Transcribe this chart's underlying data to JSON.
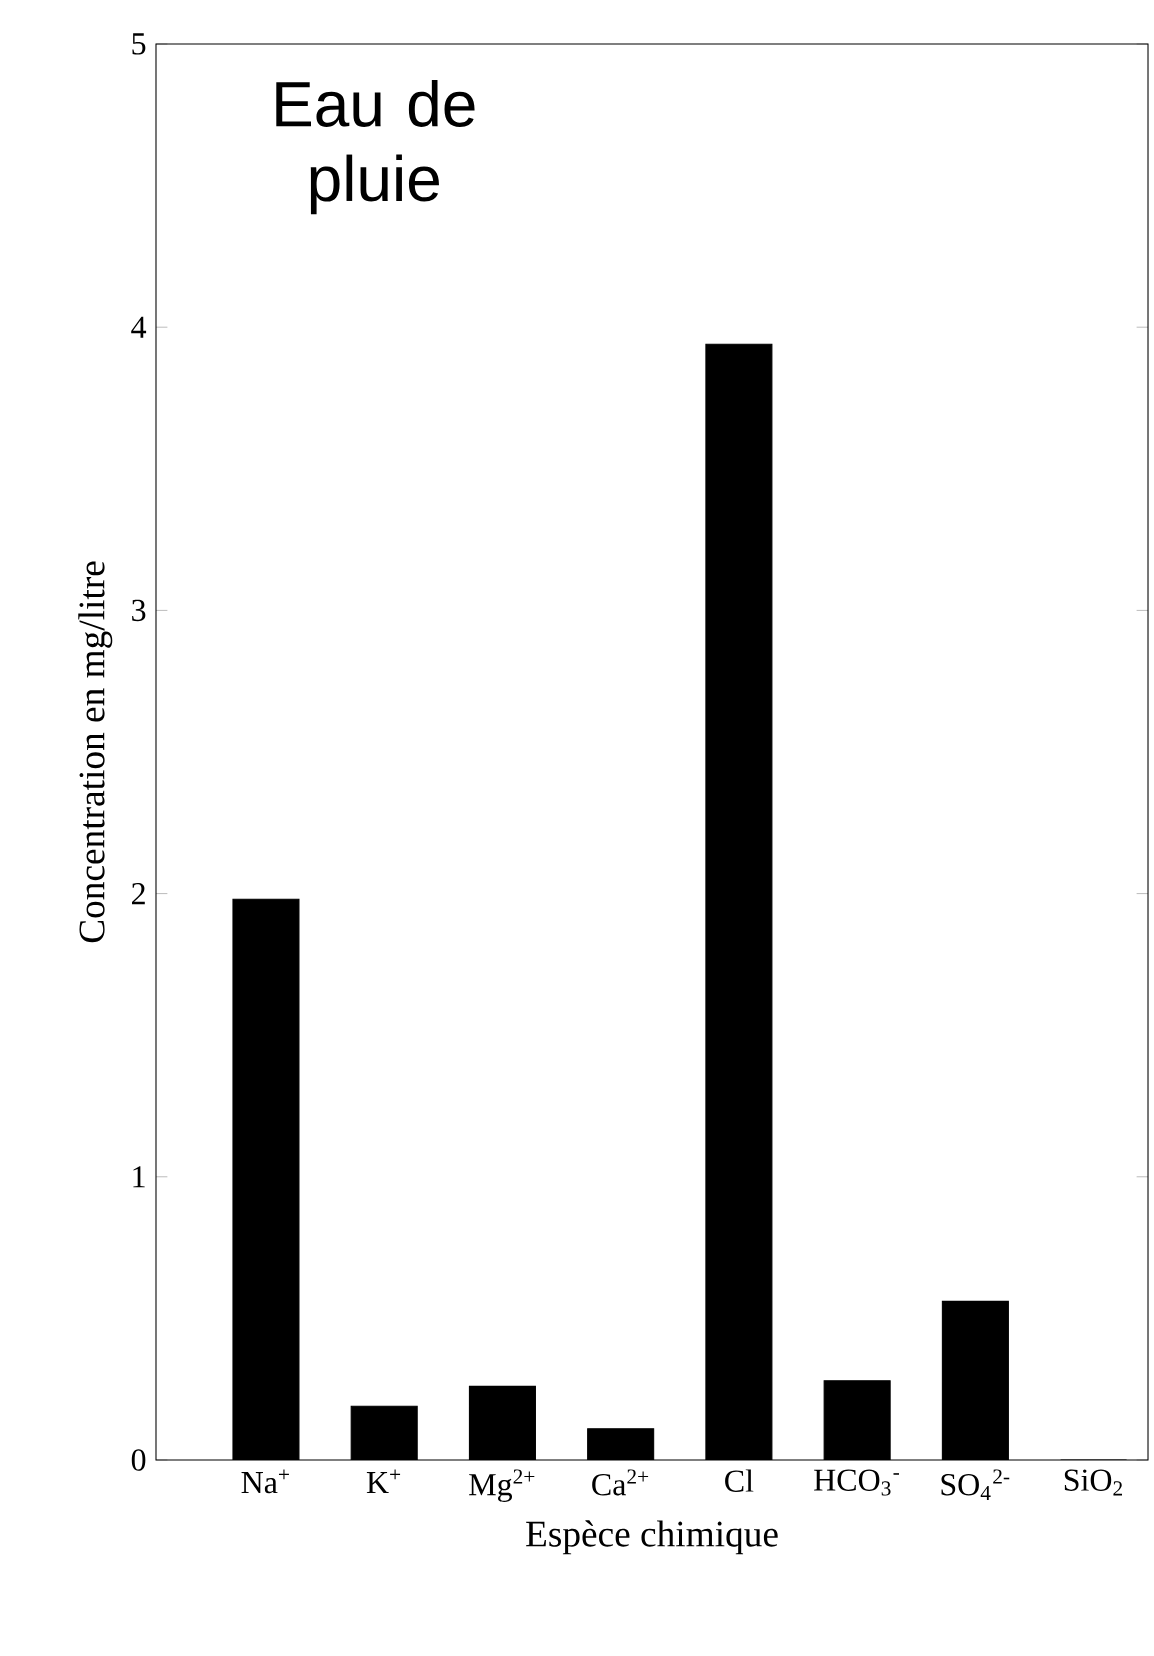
{
  "chart_data": {
    "type": "bar",
    "title": "Eau de pluie",
    "xlabel": "Espèce chimique",
    "ylabel": "Concentration en mg/litre",
    "categories": [
      "Na$^{+}$",
      "K$^{+}$",
      "Mg$^{2+}$",
      "Ca$^{2+}$",
      "Cl",
      "HCO$_{3}$$^{-}$",
      "SO$_{4}$$^{2-}$",
      "SiO$_{2}$"
    ],
    "values": [
      1.98,
      0.19,
      0.26,
      0.11,
      3.94,
      0.28,
      0.56,
      0
    ],
    "color": "#000000",
    "ylim": [
      0,
      5
    ],
    "yticks": [
      0,
      1,
      2,
      3,
      4,
      5
    ],
    "grid": false
  }
}
